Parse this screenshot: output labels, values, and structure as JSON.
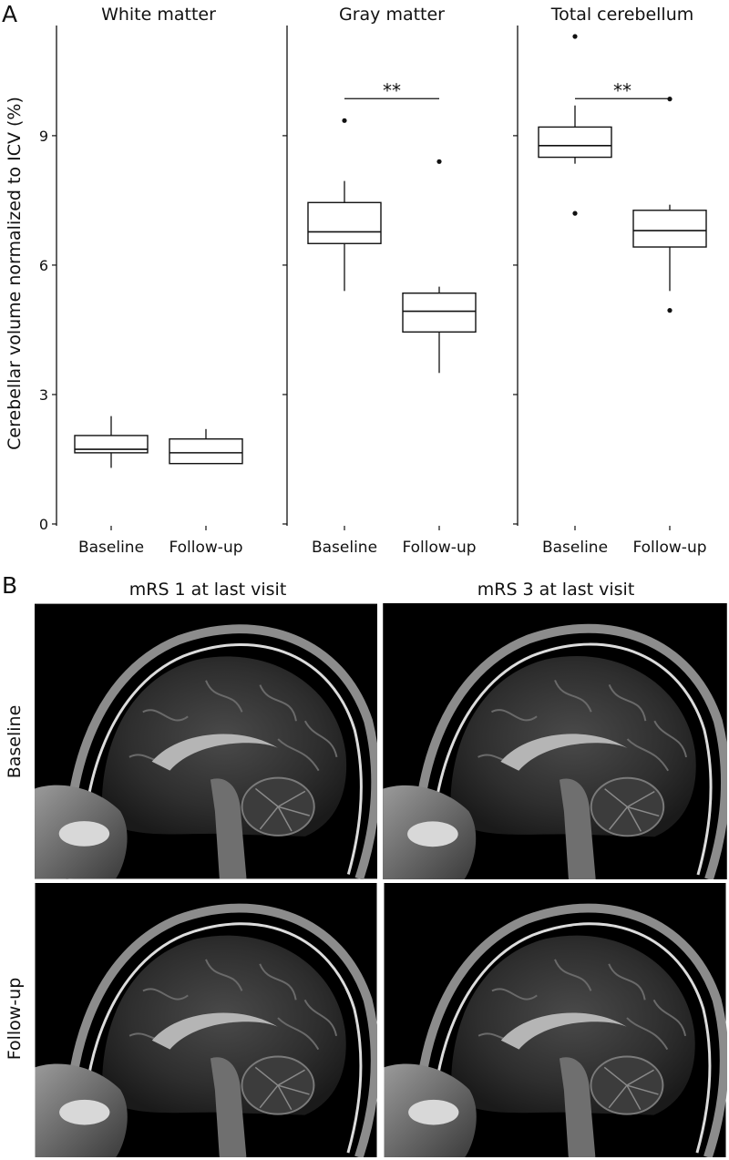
{
  "panel_a_label": "A",
  "panel_b_label": "B",
  "chart_data": {
    "type": "boxplot",
    "ylabel": "Cerebellar volume normalized to ICV (%)",
    "ylim": [
      0,
      11.3
    ],
    "yticks": [
      0,
      3,
      6,
      9
    ],
    "categories": [
      "Baseline",
      "Follow-up"
    ],
    "grid": false,
    "facets": [
      {
        "title": "White matter",
        "significance": "",
        "boxes": [
          {
            "category": "Baseline",
            "whisker_low": 1.3,
            "q1": 1.65,
            "median": 1.73,
            "q3": 2.05,
            "whisker_high": 2.5,
            "outliers": []
          },
          {
            "category": "Follow-up",
            "whisker_low": 1.4,
            "q1": 1.4,
            "median": 1.65,
            "q3": 1.97,
            "whisker_high": 2.2,
            "outliers": []
          }
        ]
      },
      {
        "title": "Gray matter",
        "significance": "**",
        "boxes": [
          {
            "category": "Baseline",
            "whisker_low": 5.4,
            "q1": 6.5,
            "median": 6.77,
            "q3": 7.45,
            "whisker_high": 7.95,
            "outliers": [
              9.35
            ]
          },
          {
            "category": "Follow-up",
            "whisker_low": 3.5,
            "q1": 4.45,
            "median": 4.93,
            "q3": 5.35,
            "whisker_high": 5.5,
            "outliers": [
              8.4
            ]
          }
        ]
      },
      {
        "title": "Total cerebellum",
        "significance": "**",
        "boxes": [
          {
            "category": "Baseline",
            "whisker_low": 8.35,
            "q1": 8.5,
            "median": 8.77,
            "q3": 9.2,
            "whisker_high": 9.7,
            "outliers": [
              11.3,
              7.2
            ]
          },
          {
            "category": "Follow-up",
            "whisker_low": 5.4,
            "q1": 6.42,
            "median": 6.8,
            "q3": 7.27,
            "whisker_high": 7.4,
            "outliers": [
              9.85,
              4.95
            ]
          }
        ]
      }
    ]
  },
  "panel_b": {
    "columns": [
      "mRS 1 at last visit",
      "mRS 3 at last visit"
    ],
    "rows": [
      "Baseline",
      "Follow-up"
    ]
  },
  "colors": {
    "box_fill": "#ffffff",
    "box_stroke": "#111111",
    "mri_background": "#000000"
  }
}
